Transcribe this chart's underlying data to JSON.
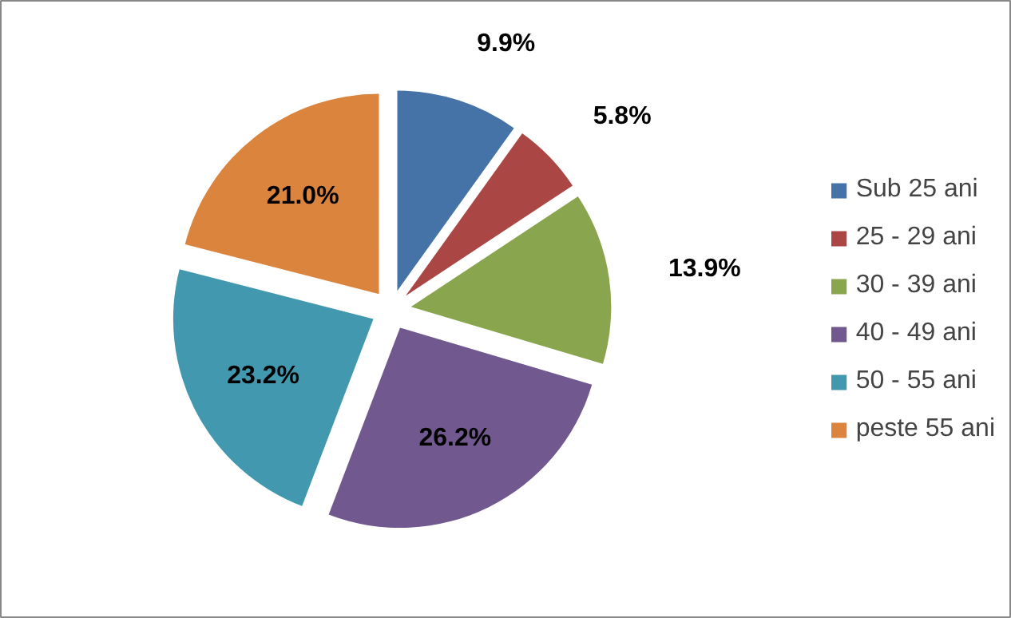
{
  "chart_data": {
    "type": "pie",
    "categories": [
      "Sub 25 ani",
      "25 - 29 ani",
      "30 - 39 ani",
      "40 - 49 ani",
      "50 - 55 ani",
      "peste 55 ani"
    ],
    "values": [
      9.9,
      5.8,
      13.9,
      26.2,
      23.2,
      21.0
    ],
    "colors": [
      "#4572a7",
      "#aa4643",
      "#89a54e",
      "#71588f",
      "#4198af",
      "#db843d"
    ],
    "value_labels": [
      "9.9%",
      "5.8%",
      "13.9%",
      "26.2%",
      "23.2%",
      "21.0%"
    ],
    "legend": "right"
  }
}
